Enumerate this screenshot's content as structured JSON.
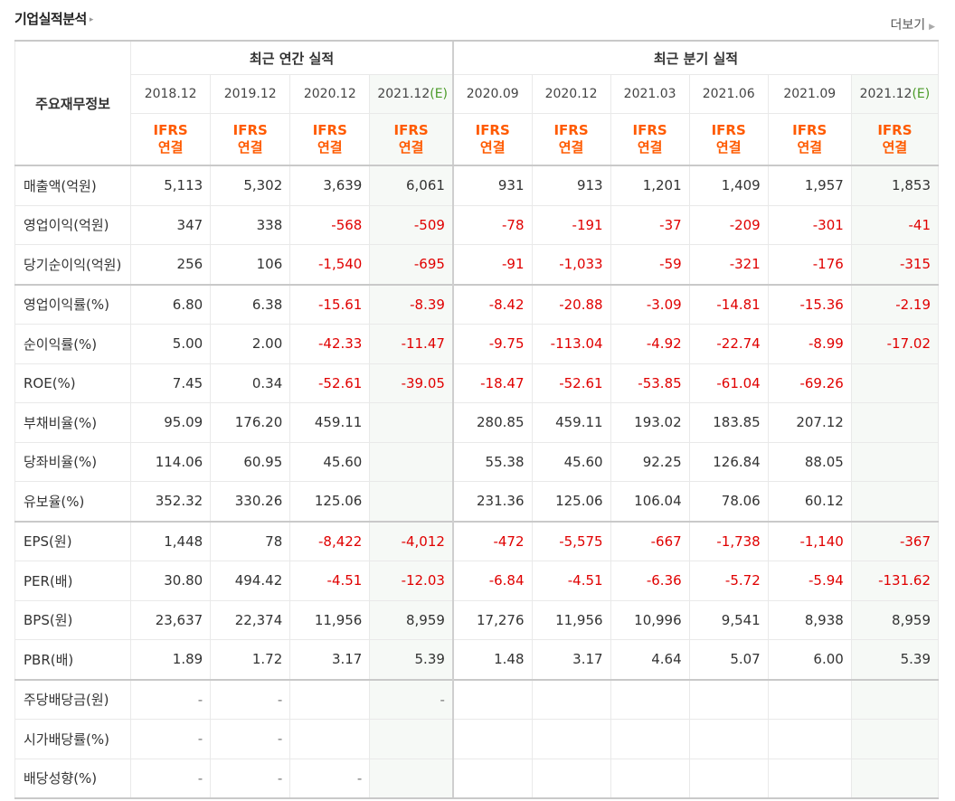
{
  "section_title": "기업실적분석",
  "more_label": "더보기",
  "corner_label": "주요재무정보",
  "group_annual": "최근 연간 실적",
  "group_quarter": "최근 분기 실적",
  "periods": [
    {
      "date": "2018.12",
      "est": false
    },
    {
      "date": "2019.12",
      "est": false
    },
    {
      "date": "2020.12",
      "est": false
    },
    {
      "date": "2021.12",
      "est": true
    },
    {
      "date": "2020.09",
      "est": false
    },
    {
      "date": "2020.12",
      "est": false
    },
    {
      "date": "2021.03",
      "est": false
    },
    {
      "date": "2021.06",
      "est": false
    },
    {
      "date": "2021.09",
      "est": false
    },
    {
      "date": "2021.12",
      "est": true
    }
  ],
  "est_mark": "(E)",
  "ifrs_line1": "IFRS",
  "ifrs_line2": "연결",
  "colors": {
    "negative": "#e00000",
    "ifrs": "#ff5a00",
    "estimate_mark": "#4a9a28",
    "estimate_bg": "#f6f9f6"
  },
  "rows": [
    {
      "label": "매출액(억원)",
      "values": [
        "5,113",
        "5,302",
        "3,639",
        "6,061",
        "931",
        "913",
        "1,201",
        "1,409",
        "1,957",
        "1,853"
      ],
      "group_start": false
    },
    {
      "label": "영업이익(억원)",
      "values": [
        "347",
        "338",
        "-568",
        "-509",
        "-78",
        "-191",
        "-37",
        "-209",
        "-301",
        "-41"
      ],
      "group_start": false
    },
    {
      "label": "당기순이익(억원)",
      "values": [
        "256",
        "106",
        "-1,540",
        "-695",
        "-91",
        "-1,033",
        "-59",
        "-321",
        "-176",
        "-315"
      ],
      "group_start": false
    },
    {
      "label": "영업이익률(%)",
      "values": [
        "6.80",
        "6.38",
        "-15.61",
        "-8.39",
        "-8.42",
        "-20.88",
        "-3.09",
        "-14.81",
        "-15.36",
        "-2.19"
      ],
      "group_start": true
    },
    {
      "label": "순이익률(%)",
      "values": [
        "5.00",
        "2.00",
        "-42.33",
        "-11.47",
        "-9.75",
        "-113.04",
        "-4.92",
        "-22.74",
        "-8.99",
        "-17.02"
      ],
      "group_start": false
    },
    {
      "label": "ROE(%)",
      "values": [
        "7.45",
        "0.34",
        "-52.61",
        "-39.05",
        "-18.47",
        "-52.61",
        "-53.85",
        "-61.04",
        "-69.26",
        ""
      ],
      "group_start": false
    },
    {
      "label": "부채비율(%)",
      "values": [
        "95.09",
        "176.20",
        "459.11",
        "",
        "280.85",
        "459.11",
        "193.02",
        "183.85",
        "207.12",
        ""
      ],
      "group_start": false
    },
    {
      "label": "당좌비율(%)",
      "values": [
        "114.06",
        "60.95",
        "45.60",
        "",
        "55.38",
        "45.60",
        "92.25",
        "126.84",
        "88.05",
        ""
      ],
      "group_start": false
    },
    {
      "label": "유보율(%)",
      "values": [
        "352.32",
        "330.26",
        "125.06",
        "",
        "231.36",
        "125.06",
        "106.04",
        "78.06",
        "60.12",
        ""
      ],
      "group_start": false
    },
    {
      "label": "EPS(원)",
      "values": [
        "1,448",
        "78",
        "-8,422",
        "-4,012",
        "-472",
        "-5,575",
        "-667",
        "-1,738",
        "-1,140",
        "-367"
      ],
      "group_start": true
    },
    {
      "label": "PER(배)",
      "values": [
        "30.80",
        "494.42",
        "-4.51",
        "-12.03",
        "-6.84",
        "-4.51",
        "-6.36",
        "-5.72",
        "-5.94",
        "-131.62"
      ],
      "group_start": false
    },
    {
      "label": "BPS(원)",
      "values": [
        "23,637",
        "22,374",
        "11,956",
        "8,959",
        "17,276",
        "11,956",
        "10,996",
        "9,541",
        "8,938",
        "8,959"
      ],
      "group_start": false
    },
    {
      "label": "PBR(배)",
      "values": [
        "1.89",
        "1.72",
        "3.17",
        "5.39",
        "1.48",
        "3.17",
        "4.64",
        "5.07",
        "6.00",
        "5.39"
      ],
      "group_start": false
    },
    {
      "label": "주당배당금(원)",
      "values": [
        "-",
        "-",
        "",
        "-",
        "",
        "",
        "",
        "",
        "",
        ""
      ],
      "group_start": true
    },
    {
      "label": "시가배당률(%)",
      "values": [
        "-",
        "-",
        "",
        "",
        "",
        "",
        "",
        "",
        "",
        ""
      ],
      "group_start": false
    },
    {
      "label": "배당성향(%)",
      "values": [
        "-",
        "-",
        "-",
        "",
        "",
        "",
        "",
        "",
        "",
        ""
      ],
      "group_start": false
    }
  ]
}
